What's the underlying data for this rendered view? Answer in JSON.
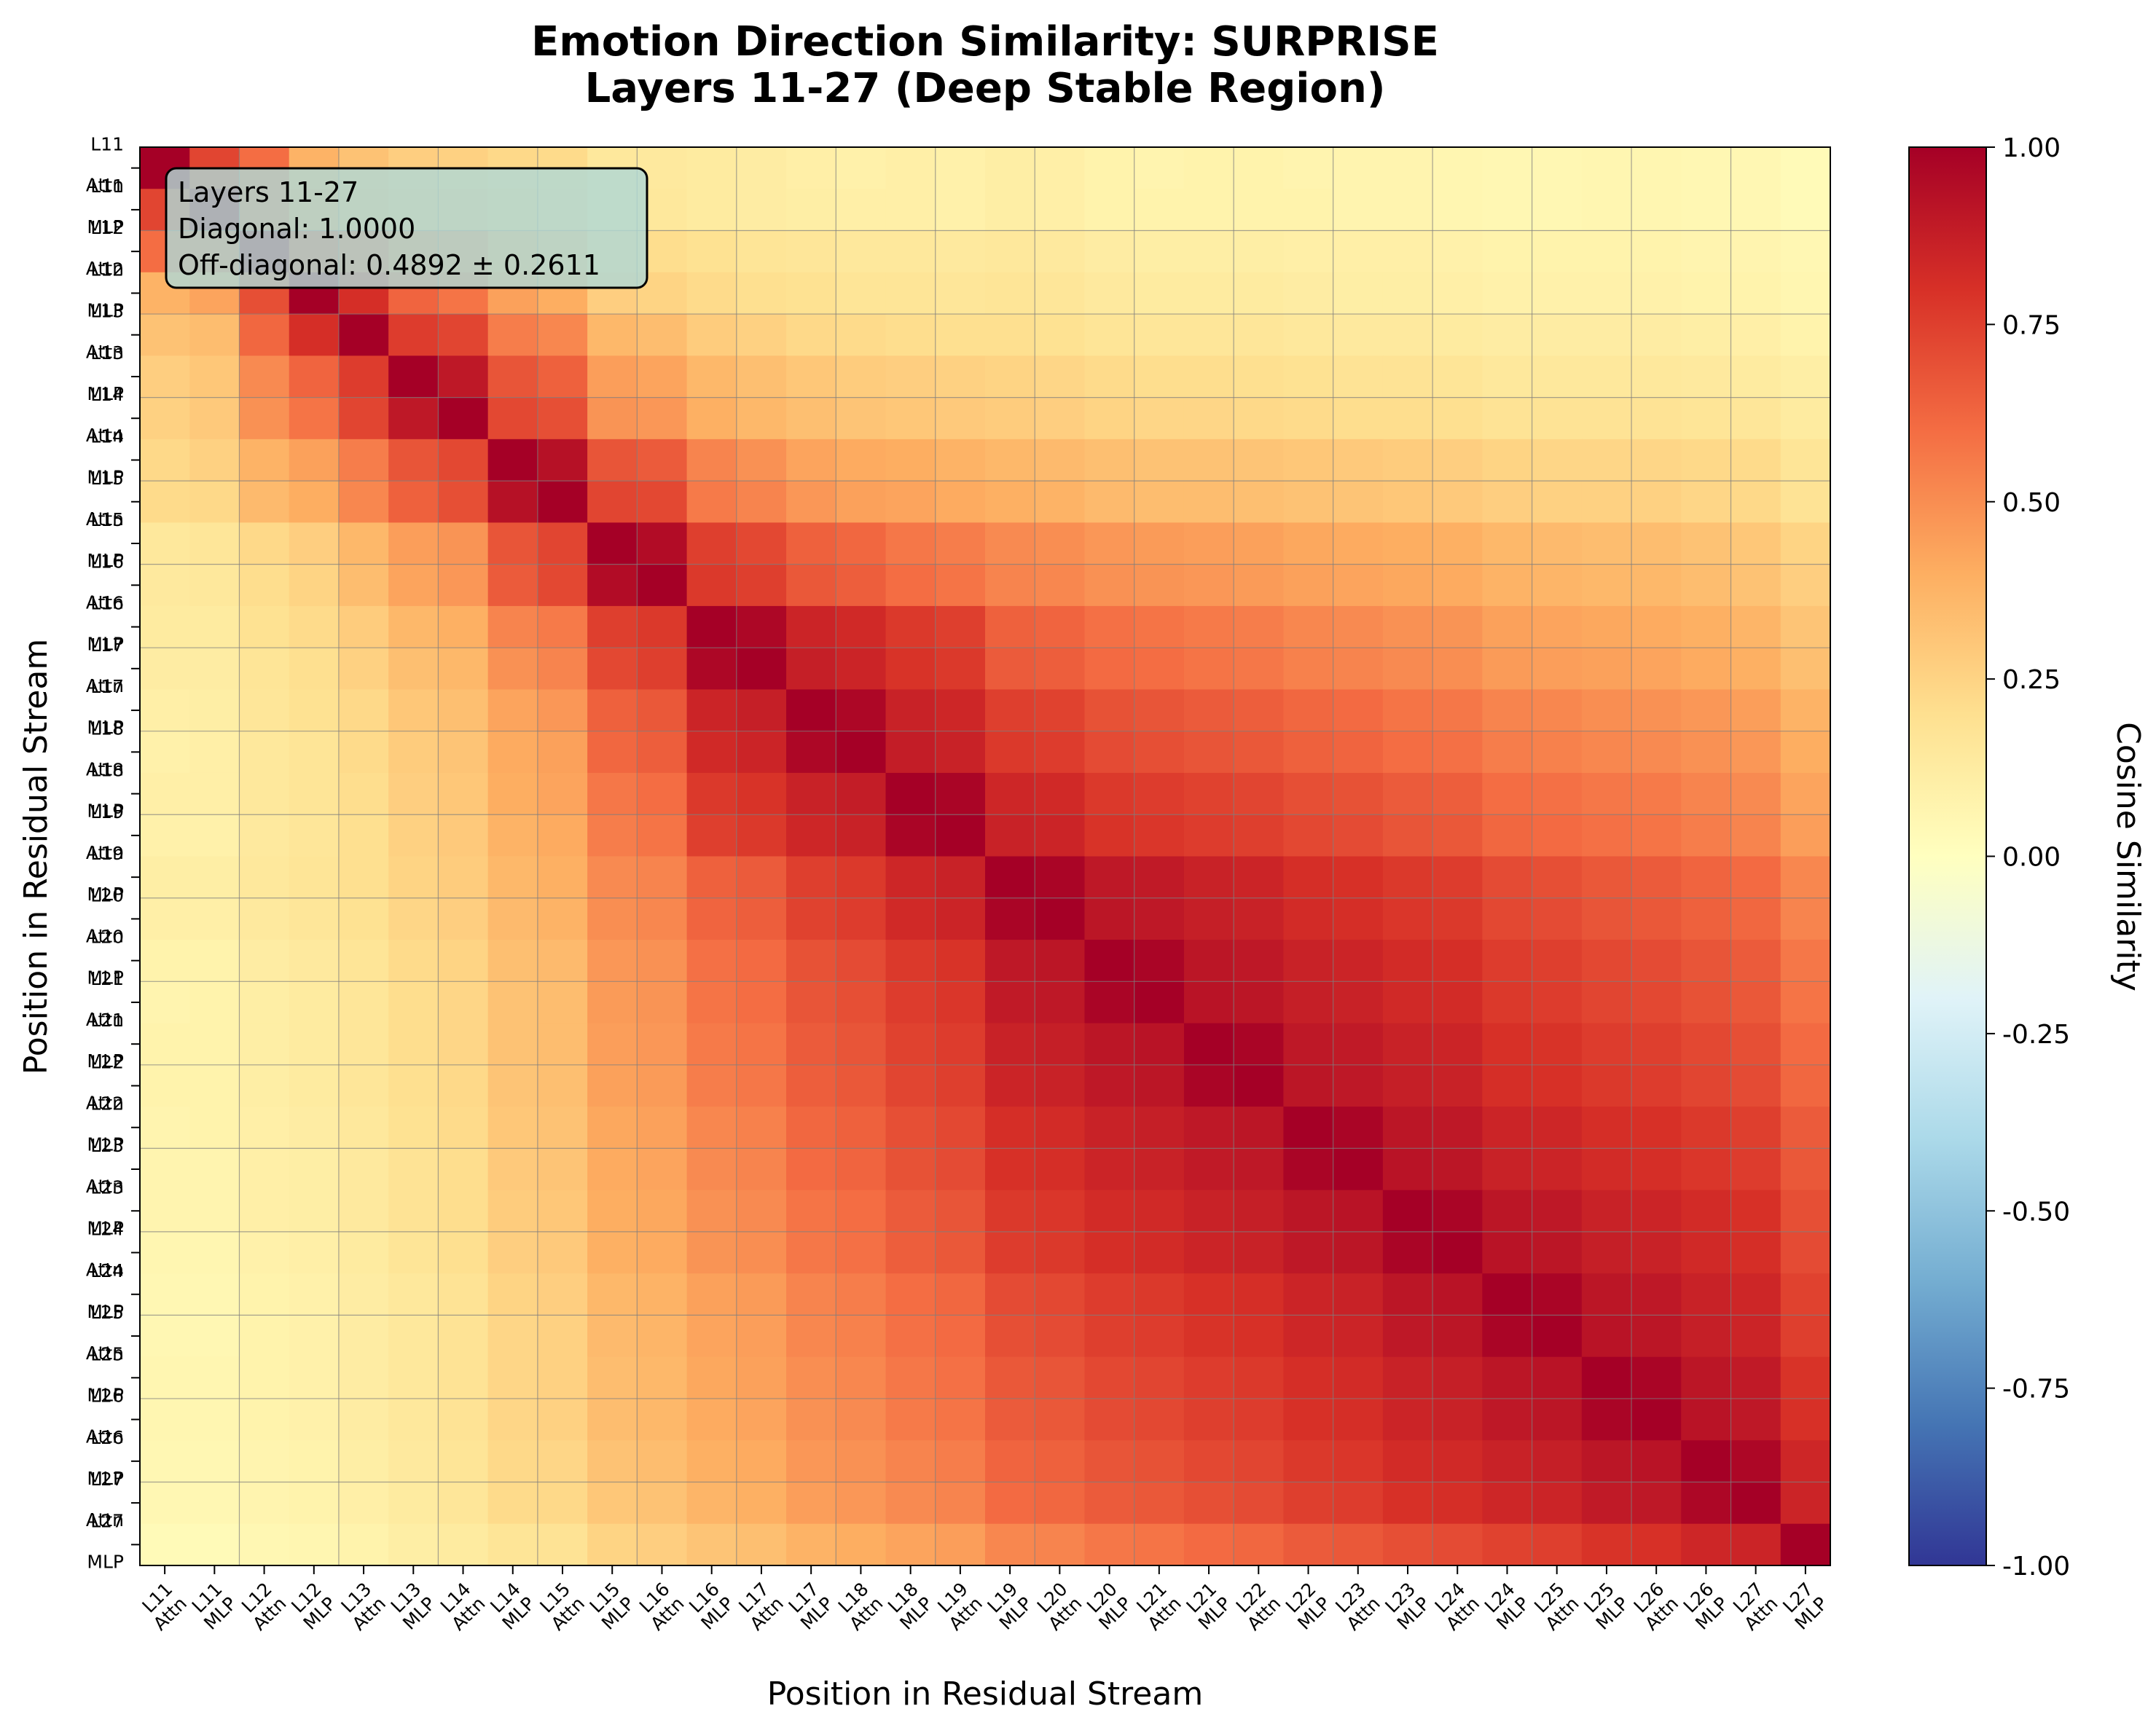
{
  "chart_data": {
    "type": "heatmap",
    "title": "Emotion Direction Similarity: SURPRISE",
    "subtitle": "Layers 11-27 (Deep Stable Region)",
    "xlabel": "Position in Residual Stream",
    "ylabel": "Position in Residual Stream",
    "colorbar_label": "Cosine Similarity",
    "colormap": "RdYlBu_r",
    "vmin": -1.0,
    "vmax": 1.0,
    "colorbar_ticks": [
      "1.00",
      "0.75",
      "0.50",
      "0.25",
      "0.00",
      "-0.25",
      "-0.50",
      "-0.75",
      "-1.00"
    ],
    "labels": [
      "L11 Attn",
      "L11 MLP",
      "L12 Attn",
      "L12 MLP",
      "L13 Attn",
      "L13 MLP",
      "L14 Attn",
      "L14 MLP",
      "L15 Attn",
      "L15 MLP",
      "L16 Attn",
      "L16 MLP",
      "L17 Attn",
      "L17 MLP",
      "L18 Attn",
      "L18 MLP",
      "L19 Attn",
      "L19 MLP",
      "L20 Attn",
      "L20 MLP",
      "L21 Attn",
      "L21 MLP",
      "L22 Attn",
      "L22 MLP",
      "L23 Attn",
      "L23 MLP",
      "L24 Attn",
      "L24 MLP",
      "L25 Attn",
      "L25 MLP",
      "L26 Attn",
      "L26 MLP",
      "L27 Attn",
      "L27 MLP"
    ],
    "matrix": [
      [
        1.0,
        0.73,
        0.6,
        0.38,
        0.32,
        0.27,
        0.26,
        0.23,
        0.22,
        0.15,
        0.14,
        0.13,
        0.12,
        0.1,
        0.09,
        0.1,
        0.09,
        0.11,
        0.1,
        0.08,
        0.07,
        0.08,
        0.08,
        0.07,
        0.07,
        0.07,
        0.06,
        0.05,
        0.05,
        0.06,
        0.06,
        0.05,
        0.05,
        0.03
      ],
      [
        0.73,
        1.0,
        0.6,
        0.43,
        0.34,
        0.3,
        0.29,
        0.26,
        0.23,
        0.16,
        0.15,
        0.13,
        0.12,
        0.11,
        0.1,
        0.1,
        0.09,
        0.11,
        0.1,
        0.08,
        0.08,
        0.08,
        0.08,
        0.08,
        0.07,
        0.07,
        0.06,
        0.05,
        0.05,
        0.06,
        0.06,
        0.05,
        0.05,
        0.03
      ],
      [
        0.6,
        0.6,
        1.0,
        0.7,
        0.62,
        0.51,
        0.49,
        0.38,
        0.35,
        0.23,
        0.21,
        0.19,
        0.17,
        0.16,
        0.15,
        0.15,
        0.14,
        0.15,
        0.14,
        0.12,
        0.11,
        0.11,
        0.11,
        0.1,
        0.1,
        0.1,
        0.09,
        0.08,
        0.08,
        0.08,
        0.08,
        0.07,
        0.07,
        0.05
      ],
      [
        0.38,
        0.43,
        0.7,
        1.0,
        0.81,
        0.63,
        0.58,
        0.44,
        0.4,
        0.27,
        0.25,
        0.22,
        0.2,
        0.19,
        0.17,
        0.17,
        0.16,
        0.17,
        0.16,
        0.14,
        0.13,
        0.13,
        0.13,
        0.12,
        0.11,
        0.11,
        0.1,
        0.09,
        0.09,
        0.09,
        0.09,
        0.08,
        0.08,
        0.06
      ],
      [
        0.32,
        0.34,
        0.62,
        0.81,
        1.0,
        0.76,
        0.73,
        0.55,
        0.52,
        0.36,
        0.34,
        0.28,
        0.26,
        0.23,
        0.22,
        0.21,
        0.2,
        0.2,
        0.19,
        0.17,
        0.16,
        0.16,
        0.16,
        0.15,
        0.14,
        0.14,
        0.13,
        0.12,
        0.12,
        0.12,
        0.12,
        0.11,
        0.1,
        0.08
      ],
      [
        0.27,
        0.3,
        0.51,
        0.63,
        0.76,
        1.0,
        0.9,
        0.68,
        0.64,
        0.45,
        0.43,
        0.36,
        0.33,
        0.3,
        0.28,
        0.27,
        0.26,
        0.25,
        0.24,
        0.22,
        0.21,
        0.21,
        0.2,
        0.19,
        0.18,
        0.18,
        0.17,
        0.15,
        0.15,
        0.15,
        0.15,
        0.14,
        0.13,
        0.11
      ],
      [
        0.26,
        0.29,
        0.49,
        0.58,
        0.73,
        0.9,
        1.0,
        0.72,
        0.7,
        0.48,
        0.47,
        0.39,
        0.36,
        0.33,
        0.31,
        0.3,
        0.29,
        0.28,
        0.27,
        0.25,
        0.24,
        0.24,
        0.23,
        0.22,
        0.21,
        0.21,
        0.2,
        0.18,
        0.18,
        0.18,
        0.18,
        0.17,
        0.16,
        0.13
      ],
      [
        0.23,
        0.26,
        0.38,
        0.44,
        0.55,
        0.68,
        0.72,
        1.0,
        0.93,
        0.68,
        0.66,
        0.53,
        0.49,
        0.43,
        0.41,
        0.4,
        0.38,
        0.36,
        0.35,
        0.33,
        0.32,
        0.32,
        0.31,
        0.3,
        0.29,
        0.28,
        0.27,
        0.25,
        0.24,
        0.24,
        0.24,
        0.23,
        0.22,
        0.17
      ],
      [
        0.22,
        0.23,
        0.35,
        0.4,
        0.52,
        0.64,
        0.7,
        0.93,
        1.0,
        0.73,
        0.72,
        0.56,
        0.53,
        0.47,
        0.44,
        0.43,
        0.41,
        0.39,
        0.38,
        0.35,
        0.34,
        0.34,
        0.33,
        0.32,
        0.31,
        0.3,
        0.29,
        0.27,
        0.26,
        0.26,
        0.26,
        0.24,
        0.23,
        0.18
      ],
      [
        0.15,
        0.16,
        0.23,
        0.27,
        0.36,
        0.45,
        0.48,
        0.68,
        0.73,
        1.0,
        0.95,
        0.75,
        0.72,
        0.64,
        0.62,
        0.57,
        0.55,
        0.51,
        0.5,
        0.47,
        0.46,
        0.45,
        0.44,
        0.42,
        0.41,
        0.4,
        0.39,
        0.36,
        0.35,
        0.34,
        0.34,
        0.32,
        0.3,
        0.25
      ],
      [
        0.14,
        0.15,
        0.21,
        0.25,
        0.34,
        0.43,
        0.47,
        0.66,
        0.72,
        0.95,
        1.0,
        0.77,
        0.75,
        0.67,
        0.65,
        0.6,
        0.58,
        0.53,
        0.52,
        0.49,
        0.48,
        0.47,
        0.46,
        0.44,
        0.43,
        0.42,
        0.41,
        0.38,
        0.37,
        0.36,
        0.36,
        0.34,
        0.32,
        0.27
      ],
      [
        0.13,
        0.13,
        0.19,
        0.22,
        0.28,
        0.36,
        0.39,
        0.53,
        0.56,
        0.75,
        0.77,
        1.0,
        0.97,
        0.85,
        0.83,
        0.77,
        0.75,
        0.64,
        0.63,
        0.59,
        0.58,
        0.56,
        0.55,
        0.52,
        0.51,
        0.49,
        0.48,
        0.44,
        0.43,
        0.42,
        0.41,
        0.39,
        0.37,
        0.31
      ],
      [
        0.12,
        0.12,
        0.17,
        0.2,
        0.26,
        0.33,
        0.36,
        0.49,
        0.53,
        0.72,
        0.75,
        0.97,
        1.0,
        0.87,
        0.85,
        0.79,
        0.77,
        0.66,
        0.65,
        0.61,
        0.6,
        0.58,
        0.57,
        0.54,
        0.53,
        0.51,
        0.5,
        0.46,
        0.45,
        0.44,
        0.43,
        0.41,
        0.39,
        0.33
      ],
      [
        0.1,
        0.11,
        0.16,
        0.19,
        0.23,
        0.3,
        0.33,
        0.43,
        0.47,
        0.64,
        0.67,
        0.85,
        0.87,
        1.0,
        0.97,
        0.86,
        0.84,
        0.75,
        0.74,
        0.69,
        0.68,
        0.66,
        0.65,
        0.62,
        0.61,
        0.58,
        0.57,
        0.53,
        0.52,
        0.5,
        0.49,
        0.47,
        0.45,
        0.38
      ],
      [
        0.09,
        0.1,
        0.15,
        0.17,
        0.22,
        0.28,
        0.31,
        0.41,
        0.44,
        0.62,
        0.65,
        0.83,
        0.85,
        0.97,
        1.0,
        0.88,
        0.86,
        0.77,
        0.76,
        0.71,
        0.7,
        0.68,
        0.67,
        0.64,
        0.63,
        0.6,
        0.59,
        0.55,
        0.54,
        0.52,
        0.51,
        0.49,
        0.47,
        0.4
      ],
      [
        0.1,
        0.1,
        0.15,
        0.17,
        0.21,
        0.27,
        0.3,
        0.4,
        0.43,
        0.57,
        0.6,
        0.77,
        0.79,
        0.86,
        0.88,
        1.0,
        0.98,
        0.84,
        0.83,
        0.77,
        0.76,
        0.74,
        0.73,
        0.7,
        0.69,
        0.66,
        0.65,
        0.6,
        0.59,
        0.57,
        0.56,
        0.53,
        0.51,
        0.43
      ],
      [
        0.09,
        0.09,
        0.14,
        0.16,
        0.2,
        0.26,
        0.29,
        0.38,
        0.41,
        0.55,
        0.58,
        0.75,
        0.77,
        0.84,
        0.86,
        0.98,
        1.0,
        0.86,
        0.85,
        0.79,
        0.78,
        0.76,
        0.75,
        0.72,
        0.71,
        0.68,
        0.67,
        0.62,
        0.61,
        0.59,
        0.58,
        0.55,
        0.53,
        0.45
      ],
      [
        0.11,
        0.11,
        0.15,
        0.17,
        0.2,
        0.25,
        0.28,
        0.36,
        0.39,
        0.51,
        0.53,
        0.64,
        0.66,
        0.75,
        0.77,
        0.84,
        0.86,
        1.0,
        0.98,
        0.9,
        0.89,
        0.86,
        0.85,
        0.81,
        0.8,
        0.77,
        0.76,
        0.71,
        0.7,
        0.67,
        0.66,
        0.63,
        0.61,
        0.52
      ],
      [
        0.1,
        0.1,
        0.14,
        0.16,
        0.19,
        0.24,
        0.27,
        0.35,
        0.38,
        0.5,
        0.52,
        0.63,
        0.65,
        0.74,
        0.76,
        0.83,
        0.85,
        0.98,
        1.0,
        0.91,
        0.9,
        0.87,
        0.86,
        0.82,
        0.81,
        0.78,
        0.77,
        0.72,
        0.71,
        0.68,
        0.67,
        0.64,
        0.62,
        0.53
      ],
      [
        0.08,
        0.08,
        0.12,
        0.14,
        0.17,
        0.22,
        0.25,
        0.33,
        0.35,
        0.47,
        0.49,
        0.59,
        0.61,
        0.69,
        0.71,
        0.77,
        0.79,
        0.9,
        0.91,
        1.0,
        0.98,
        0.91,
        0.9,
        0.86,
        0.85,
        0.82,
        0.81,
        0.76,
        0.75,
        0.72,
        0.71,
        0.68,
        0.66,
        0.57
      ],
      [
        0.07,
        0.08,
        0.11,
        0.13,
        0.16,
        0.21,
        0.24,
        0.32,
        0.34,
        0.46,
        0.48,
        0.58,
        0.6,
        0.68,
        0.7,
        0.76,
        0.78,
        0.89,
        0.9,
        0.98,
        1.0,
        0.92,
        0.91,
        0.87,
        0.86,
        0.83,
        0.82,
        0.77,
        0.76,
        0.73,
        0.72,
        0.69,
        0.67,
        0.58
      ],
      [
        0.08,
        0.08,
        0.11,
        0.13,
        0.16,
        0.21,
        0.24,
        0.32,
        0.34,
        0.45,
        0.47,
        0.56,
        0.58,
        0.66,
        0.68,
        0.74,
        0.76,
        0.86,
        0.87,
        0.91,
        0.92,
        1.0,
        0.98,
        0.9,
        0.89,
        0.86,
        0.85,
        0.8,
        0.79,
        0.76,
        0.75,
        0.72,
        0.7,
        0.61
      ],
      [
        0.08,
        0.08,
        0.11,
        0.13,
        0.16,
        0.2,
        0.23,
        0.31,
        0.33,
        0.44,
        0.46,
        0.55,
        0.57,
        0.65,
        0.67,
        0.73,
        0.75,
        0.85,
        0.86,
        0.9,
        0.91,
        0.98,
        1.0,
        0.91,
        0.9,
        0.87,
        0.86,
        0.81,
        0.8,
        0.77,
        0.76,
        0.73,
        0.71,
        0.62
      ],
      [
        0.07,
        0.08,
        0.1,
        0.12,
        0.15,
        0.19,
        0.22,
        0.3,
        0.32,
        0.42,
        0.44,
        0.52,
        0.54,
        0.62,
        0.64,
        0.7,
        0.72,
        0.81,
        0.82,
        0.86,
        0.87,
        0.9,
        0.91,
        1.0,
        0.98,
        0.91,
        0.9,
        0.85,
        0.84,
        0.81,
        0.8,
        0.77,
        0.75,
        0.66
      ],
      [
        0.07,
        0.07,
        0.1,
        0.11,
        0.14,
        0.18,
        0.21,
        0.29,
        0.31,
        0.41,
        0.43,
        0.51,
        0.53,
        0.61,
        0.63,
        0.69,
        0.71,
        0.8,
        0.81,
        0.85,
        0.86,
        0.89,
        0.9,
        0.98,
        1.0,
        0.92,
        0.91,
        0.86,
        0.85,
        0.82,
        0.81,
        0.78,
        0.76,
        0.67
      ],
      [
        0.07,
        0.07,
        0.1,
        0.11,
        0.14,
        0.18,
        0.21,
        0.28,
        0.3,
        0.4,
        0.42,
        0.49,
        0.51,
        0.58,
        0.6,
        0.66,
        0.68,
        0.77,
        0.78,
        0.82,
        0.83,
        0.86,
        0.87,
        0.91,
        0.92,
        1.0,
        0.98,
        0.91,
        0.9,
        0.86,
        0.85,
        0.82,
        0.8,
        0.7
      ],
      [
        0.06,
        0.06,
        0.09,
        0.1,
        0.13,
        0.17,
        0.2,
        0.27,
        0.29,
        0.39,
        0.41,
        0.48,
        0.5,
        0.57,
        0.59,
        0.65,
        0.67,
        0.76,
        0.77,
        0.81,
        0.82,
        0.85,
        0.86,
        0.9,
        0.91,
        0.98,
        1.0,
        0.92,
        0.91,
        0.87,
        0.86,
        0.83,
        0.81,
        0.71
      ],
      [
        0.05,
        0.05,
        0.08,
        0.09,
        0.12,
        0.15,
        0.18,
        0.25,
        0.27,
        0.36,
        0.38,
        0.44,
        0.46,
        0.53,
        0.55,
        0.6,
        0.62,
        0.71,
        0.72,
        0.76,
        0.77,
        0.8,
        0.81,
        0.85,
        0.86,
        0.91,
        0.92,
        1.0,
        0.98,
        0.91,
        0.9,
        0.86,
        0.84,
        0.74
      ],
      [
        0.05,
        0.05,
        0.08,
        0.09,
        0.12,
        0.15,
        0.18,
        0.24,
        0.26,
        0.35,
        0.37,
        0.43,
        0.45,
        0.52,
        0.54,
        0.59,
        0.61,
        0.7,
        0.71,
        0.75,
        0.76,
        0.79,
        0.8,
        0.84,
        0.85,
        0.9,
        0.91,
        0.98,
        1.0,
        0.92,
        0.91,
        0.87,
        0.85,
        0.75
      ],
      [
        0.06,
        0.06,
        0.08,
        0.09,
        0.12,
        0.15,
        0.18,
        0.24,
        0.26,
        0.34,
        0.36,
        0.42,
        0.44,
        0.5,
        0.52,
        0.57,
        0.59,
        0.67,
        0.68,
        0.72,
        0.73,
        0.76,
        0.77,
        0.81,
        0.82,
        0.86,
        0.87,
        0.91,
        0.92,
        1.0,
        0.98,
        0.91,
        0.89,
        0.79
      ],
      [
        0.06,
        0.06,
        0.08,
        0.09,
        0.12,
        0.15,
        0.18,
        0.24,
        0.26,
        0.34,
        0.36,
        0.41,
        0.43,
        0.49,
        0.51,
        0.56,
        0.58,
        0.66,
        0.67,
        0.71,
        0.72,
        0.75,
        0.76,
        0.8,
        0.81,
        0.85,
        0.86,
        0.9,
        0.91,
        0.98,
        1.0,
        0.92,
        0.9,
        0.8
      ],
      [
        0.05,
        0.05,
        0.07,
        0.08,
        0.11,
        0.14,
        0.17,
        0.23,
        0.24,
        0.32,
        0.34,
        0.39,
        0.41,
        0.47,
        0.49,
        0.53,
        0.55,
        0.63,
        0.64,
        0.68,
        0.69,
        0.72,
        0.73,
        0.77,
        0.78,
        0.82,
        0.83,
        0.86,
        0.87,
        0.91,
        0.92,
        1.0,
        0.97,
        0.84
      ],
      [
        0.05,
        0.05,
        0.07,
        0.08,
        0.1,
        0.13,
        0.16,
        0.22,
        0.23,
        0.3,
        0.32,
        0.37,
        0.39,
        0.45,
        0.47,
        0.51,
        0.53,
        0.61,
        0.62,
        0.66,
        0.67,
        0.7,
        0.71,
        0.75,
        0.76,
        0.8,
        0.81,
        0.84,
        0.85,
        0.89,
        0.9,
        0.97,
        1.0,
        0.85
      ],
      [
        0.03,
        0.03,
        0.05,
        0.06,
        0.08,
        0.11,
        0.13,
        0.17,
        0.18,
        0.25,
        0.27,
        0.31,
        0.33,
        0.38,
        0.4,
        0.43,
        0.45,
        0.52,
        0.53,
        0.57,
        0.58,
        0.61,
        0.62,
        0.66,
        0.67,
        0.7,
        0.71,
        0.74,
        0.75,
        0.79,
        0.8,
        0.84,
        0.85,
        1.0
      ]
    ]
  },
  "info_box": {
    "line1": "Layers 11-27",
    "line2": "Diagonal: 1.0000",
    "line3": "Off-diagonal: 0.4892 ± 0.2611"
  }
}
